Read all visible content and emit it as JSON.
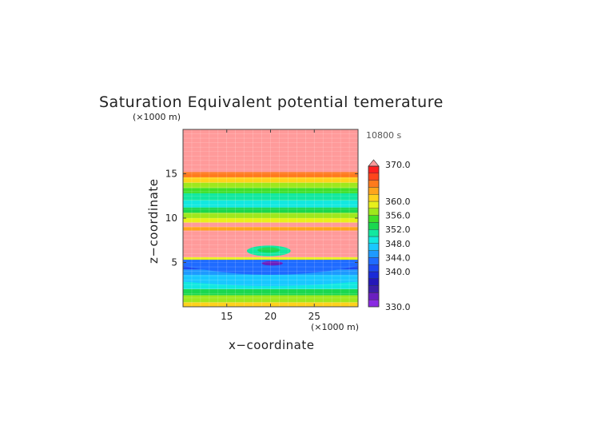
{
  "chart_data": {
    "type": "heatmap",
    "title": "Saturation Equivalent potential temerature",
    "time_label": "10800 s",
    "xlabel": "x−coordinate",
    "ylabel": "z−coordinate",
    "x_unit": "(×1000 m)",
    "z_unit": "(×1000 m)",
    "xlim": [
      10,
      30
    ],
    "zlim": [
      0,
      20
    ],
    "x_ticks": [
      "15",
      "20",
      "25"
    ],
    "z_ticks": [
      "5",
      "10",
      "15"
    ],
    "x_tick_values": [
      15,
      20,
      25
    ],
    "z_tick_values": [
      5,
      10,
      15
    ],
    "colorbar": {
      "min": 330,
      "max": 370,
      "step": 2,
      "labels": [
        "370.0",
        "360.0",
        "356.0",
        "352.0",
        "348.0",
        "344.0",
        "340.0",
        "330.0"
      ],
      "label_values": [
        370,
        360,
        356,
        352,
        348,
        344,
        340,
        330
      ],
      "colors": [
        "#8a2be2",
        "#6a1fbf",
        "#3b1fa8",
        "#2418b8",
        "#1a2ad8",
        "#1c48f0",
        "#1f6bff",
        "#1e9aff",
        "#19c8ff",
        "#12e8e0",
        "#12e8a0",
        "#19d84f",
        "#3fe028",
        "#9ee81c",
        "#e8f01a",
        "#ffd21c",
        "#ffa51c",
        "#ff7a1c",
        "#ff451c",
        "#ff1f1f",
        "#ff9a9a"
      ]
    },
    "layers": [
      {
        "z0": 0.0,
        "z1": 0.5,
        "value": 361
      },
      {
        "z0": 0.5,
        "z1": 1.3,
        "value": 357
      },
      {
        "z0": 1.3,
        "z1": 2.0,
        "value": 352
      },
      {
        "z0": 2.0,
        "z1": 2.8,
        "value": 348
      },
      {
        "z0": 2.8,
        "z1": 3.6,
        "value": 346
      },
      {
        "z0": 3.6,
        "z1": 4.2,
        "value": 344
      },
      {
        "z0": 4.2,
        "z1": 4.8,
        "value": 340
      },
      {
        "z0": 4.8,
        "z1": 5.1,
        "value": 337
      },
      {
        "z0": 5.1,
        "z1": 5.6,
        "value": 358
      },
      {
        "z0": 5.6,
        "z1": 6.8,
        "value": 370
      },
      {
        "z0": 6.8,
        "z1": 7.6,
        "value": 370
      },
      {
        "z0": 7.6,
        "z1": 8.6,
        "value": 370
      },
      {
        "z0": 8.6,
        "z1": 9.0,
        "value": 362
      },
      {
        "z0": 9.0,
        "z1": 9.5,
        "value": 370
      },
      {
        "z0": 9.5,
        "z1": 10.0,
        "value": 359
      },
      {
        "z0": 10.0,
        "z1": 10.6,
        "value": 356
      },
      {
        "z0": 10.6,
        "z1": 11.2,
        "value": 352
      },
      {
        "z0": 11.2,
        "z1": 12.0,
        "value": 349
      },
      {
        "z0": 12.0,
        "z1": 12.8,
        "value": 351
      },
      {
        "z0": 12.8,
        "z1": 13.4,
        "value": 354
      },
      {
        "z0": 13.4,
        "z1": 14.0,
        "value": 357
      },
      {
        "z0": 14.0,
        "z1": 14.6,
        "value": 361
      },
      {
        "z0": 14.6,
        "z1": 15.2,
        "value": 364
      },
      {
        "z0": 15.2,
        "z1": 20.0,
        "value": 370
      }
    ],
    "features": [
      {
        "kind": "bowl",
        "x_center": 20,
        "z_top": 5.3,
        "z_bottom": 3.3,
        "value": 342
      },
      {
        "kind": "bowl",
        "x_center": 20,
        "z_top": 3.2,
        "z_bottom": 2.2,
        "value": 346
      },
      {
        "kind": "blob",
        "x_center": 19.8,
        "z_center": 6.3,
        "x_radius": 2.5,
        "z_radius": 0.6,
        "value": 350
      },
      {
        "kind": "blob",
        "x_center": 19.8,
        "z_center": 6.4,
        "x_radius": 1.3,
        "z_radius": 0.3,
        "value": 353
      },
      {
        "kind": "blob",
        "x_center": 20.2,
        "z_center": 4.9,
        "x_radius": 1.2,
        "z_radius": 0.25,
        "value": 333
      }
    ]
  }
}
